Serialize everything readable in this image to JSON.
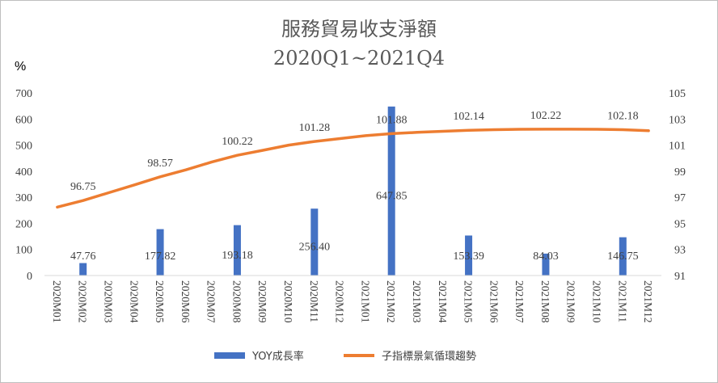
{
  "chart_data": {
    "type": "bar+line",
    "title": "服務貿易收支淨額",
    "subtitle": "2020Q1~2021Q4",
    "left_axis_unit": "%",
    "categories": [
      "2020M01",
      "2020M02",
      "2020M03",
      "2020M04",
      "2020M05",
      "2020M06",
      "2020M07",
      "2020M08",
      "2020M09",
      "2020M10",
      "2020M11",
      "2020M12",
      "2021M01",
      "2021M02",
      "2021M03",
      "2021M04",
      "2021M05",
      "2021M06",
      "2021M07",
      "2021M08",
      "2021M09",
      "2021M10",
      "2021M11",
      "2021M12"
    ],
    "y_left": {
      "min": 0,
      "max": 700,
      "ticks": [
        "0",
        "100",
        "200",
        "300",
        "400",
        "500",
        "600",
        "700"
      ]
    },
    "y_right": {
      "min": 91,
      "max": 105,
      "ticks": [
        "91",
        "93",
        "95",
        "97",
        "99",
        "101",
        "103",
        "105"
      ]
    },
    "bars": {
      "name": "YOY成長率",
      "color": "#4472c4",
      "axis": "left",
      "points": [
        {
          "category": "2020M02",
          "value": 47.76,
          "label": "47.76"
        },
        {
          "category": "2020M05",
          "value": 177.82,
          "label": "177.82"
        },
        {
          "category": "2020M08",
          "value": 193.18,
          "label": "193.18"
        },
        {
          "category": "2020M11",
          "value": 256.4,
          "label": "256.40"
        },
        {
          "category": "2021M02",
          "value": 647.85,
          "label": "647.85"
        },
        {
          "category": "2021M05",
          "value": 153.39,
          "label": "153.39"
        },
        {
          "category": "2021M08",
          "value": 84.03,
          "label": "84.03"
        },
        {
          "category": "2021M11",
          "value": 146.75,
          "label": "146.75"
        }
      ]
    },
    "line": {
      "name": "子指標景氣循環趨勢",
      "color": "#ed7d31",
      "axis": "right",
      "values": [
        96.25,
        96.75,
        97.35,
        97.95,
        98.57,
        99.1,
        99.7,
        100.22,
        100.6,
        101.0,
        101.28,
        101.5,
        101.72,
        101.88,
        101.98,
        102.06,
        102.14,
        102.18,
        102.21,
        102.22,
        102.22,
        102.21,
        102.18,
        102.1
      ],
      "data_labels": [
        {
          "category": "2020M02",
          "label": "96.75"
        },
        {
          "category": "2020M05",
          "label": "98.57"
        },
        {
          "category": "2020M08",
          "label": "100.22"
        },
        {
          "category": "2020M11",
          "label": "101.28"
        },
        {
          "category": "2021M02",
          "label": "101.88"
        },
        {
          "category": "2021M05",
          "label": "102.14"
        },
        {
          "category": "2021M08",
          "label": "102.22"
        },
        {
          "category": "2021M11",
          "label": "102.18"
        }
      ]
    },
    "legend": {
      "position": "bottom"
    },
    "grid": false
  }
}
